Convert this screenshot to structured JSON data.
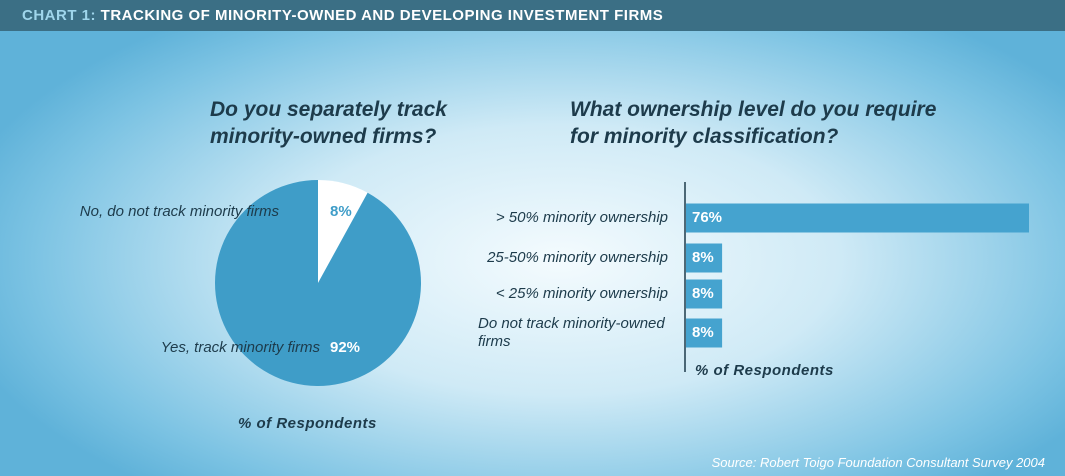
{
  "header": {
    "label": "CHART 1:",
    "title": "TRACKING OF MINORITY-OWNED AND DEVELOPING INVESTMENT FIRMS"
  },
  "source": "Source: Robert Toigo Foundation Consultant Survey 2004",
  "chart_data": [
    {
      "type": "pie",
      "title": "Do you separately track minority-owned firms?",
      "categories": [
        "No, do not track minority firms",
        "Yes, track minority firms"
      ],
      "values": [
        8,
        92
      ],
      "value_labels": [
        "8%",
        "92%"
      ],
      "colors": [
        "#ffffff",
        "#3f9dc8"
      ],
      "xlabel": "% of Respondents"
    },
    {
      "type": "hbar",
      "title": "What ownership level do you require for minority classification?",
      "categories": [
        "> 50% minority ownership",
        "25-50% minority ownership",
        "< 25% minority ownership",
        "Do not track minority-owned firms"
      ],
      "values": [
        76,
        8,
        8,
        8
      ],
      "value_labels": [
        "76%",
        "8%",
        "8%",
        "8%"
      ],
      "color": "#45a3cf",
      "xlabel": "% of Respondents"
    }
  ]
}
